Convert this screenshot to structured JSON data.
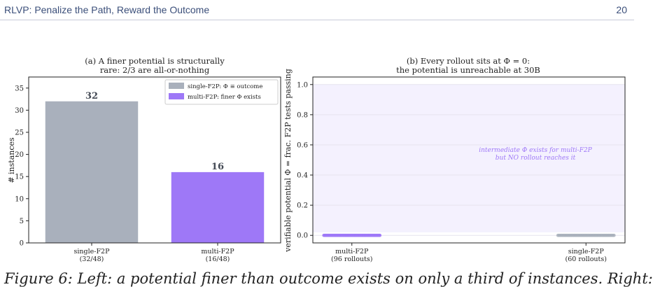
{
  "header": {
    "title": "RLVP: Penalize the Path, Reward the Outcome",
    "page_number": "20"
  },
  "chart_data": [
    {
      "type": "bar",
      "title_line1": "(a) A finer potential is structurally",
      "title_line2": "rare: 2/3 are all-or-nothing",
      "ylabel": "# instances",
      "xlabel": "",
      "ylim": [
        0,
        37.5
      ],
      "yticks": [
        0,
        5,
        10,
        15,
        20,
        25,
        30,
        35
      ],
      "categories": [
        "single-F2P",
        "multi-F2P"
      ],
      "category_sublabels": [
        "(32/48)",
        "(16/48)"
      ],
      "values": [
        32,
        16
      ],
      "value_labels": [
        "32",
        "16"
      ],
      "colors": [
        "#a9b0bc",
        "#9e78f7"
      ],
      "legend": {
        "placement": "upper-right",
        "entries": [
          {
            "label": "single-F2P: Φ ≡ outcome",
            "color": "#a9b0bc"
          },
          {
            "label": "multi-F2P: finer Φ exists",
            "color": "#9e78f7"
          }
        ]
      }
    },
    {
      "type": "scatter",
      "title_line1": "(b) Every rollout sits at Φ = 0:",
      "title_line2": "the potential is unreachable at 30B",
      "ylabel": "verifiable potential Φ = frac. F2P tests passing",
      "ylim": [
        -0.05,
        1.05
      ],
      "yticks": [
        "0.0",
        "0.2",
        "0.4",
        "0.6",
        "0.8",
        "1.0"
      ],
      "grid": true,
      "categories": [
        "multi-F2P",
        "single-F2P"
      ],
      "category_sublabels": [
        "(96 rollouts)",
        "(60 rollouts)"
      ],
      "series": [
        {
          "category": "multi-F2P",
          "count": 96,
          "y_value": 0.0,
          "color": "#9e78f7"
        },
        {
          "category": "single-F2P",
          "count": 60,
          "y_value": 0.0,
          "color": "#a9b0bc"
        }
      ],
      "shaded_region": {
        "y_from": 0.02,
        "y_to": 1.0,
        "color": "#f4f1fe"
      },
      "annotation_line1": "intermediate Φ exists for multi-F2P",
      "annotation_line2": "but NO rollout reaches it",
      "annotation_color": "#9e78f7"
    }
  ],
  "caption": "Figure 6: Left: a potential finer than outcome exists on only a third of instances. Right:"
}
